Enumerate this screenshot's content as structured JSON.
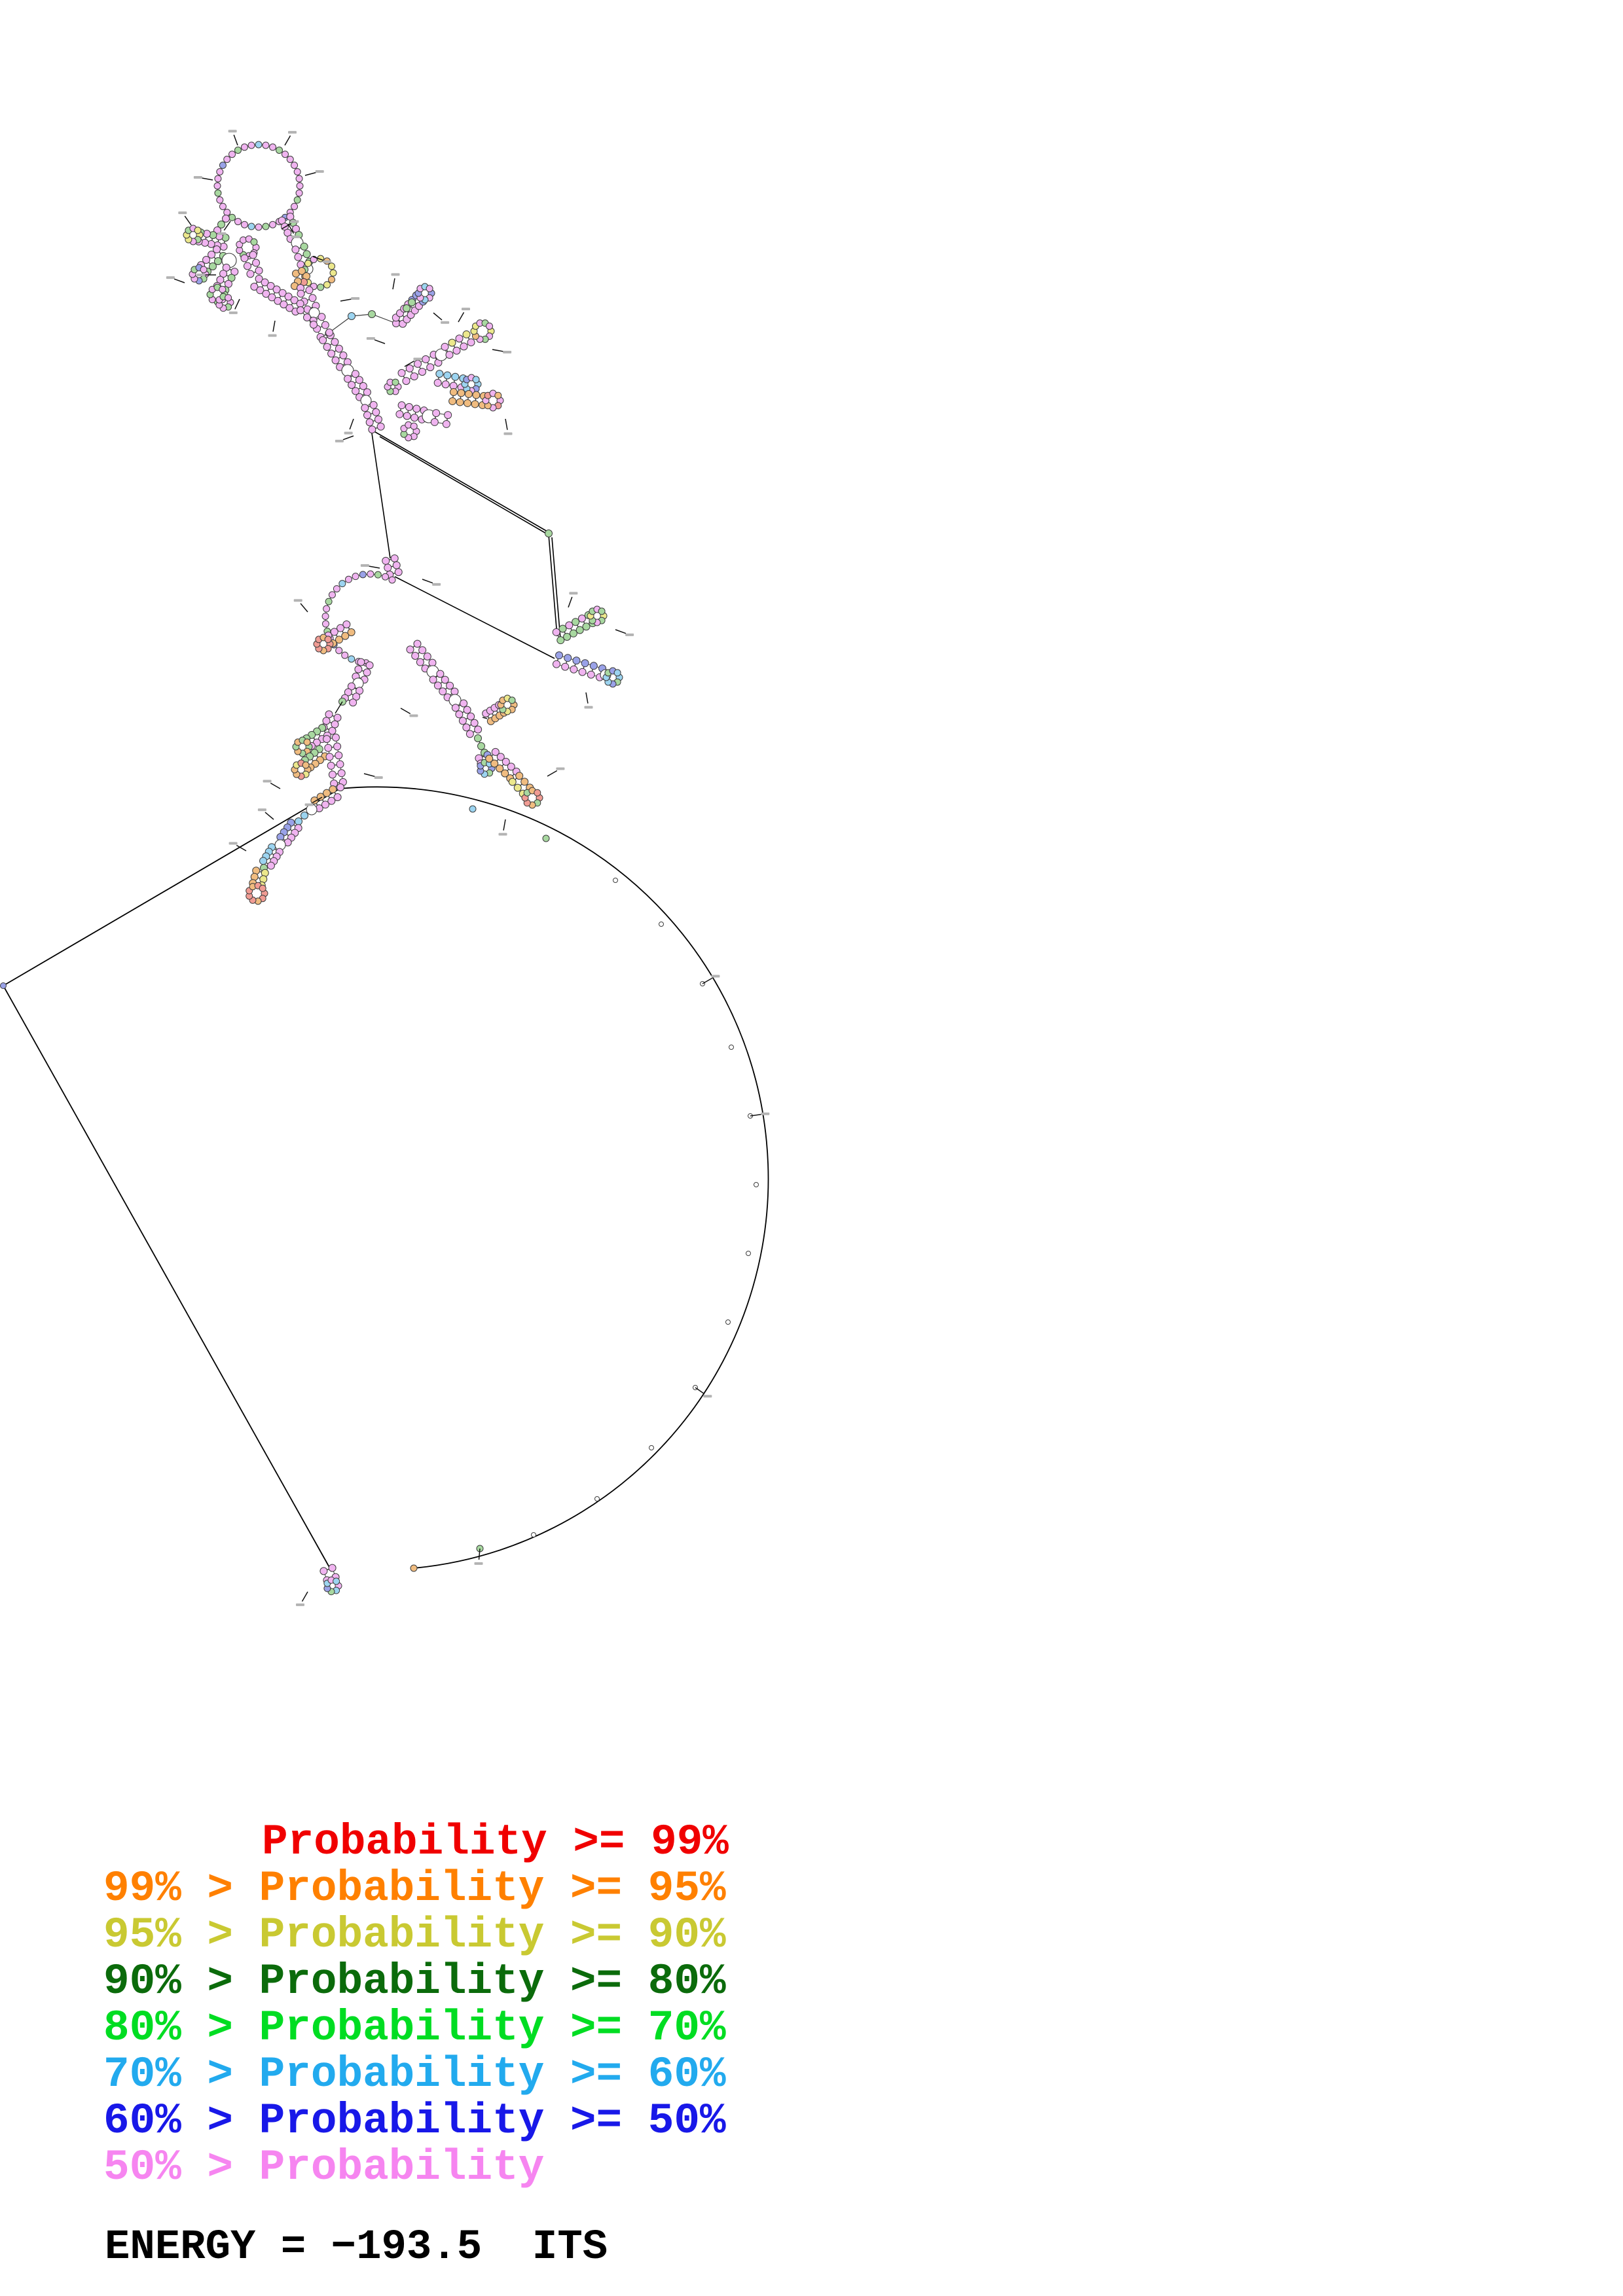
{
  "figure": {
    "type": "rna-secondary-structure-probability-plot",
    "background_color": "#ffffff",
    "backbone_color": "#000000",
    "tick_label_color": "#b3b3b3",
    "legend": {
      "rows": [
        {
          "text": "Probability >= 99%",
          "color": "#f00000",
          "indent": true
        },
        {
          "text": "99% > Probability >= 95%",
          "color": "#ff8000",
          "indent": false
        },
        {
          "text": "95% > Probability >= 90%",
          "color": "#c9c932",
          "indent": false
        },
        {
          "text": "90% > Probability >= 80%",
          "color": "#0b6b0b",
          "indent": false
        },
        {
          "text": "80% > Probability >= 70%",
          "color": "#00dd22",
          "indent": false
        },
        {
          "text": "70% > Probability >= 60%",
          "color": "#22aaee",
          "indent": false
        },
        {
          "text": "60% > Probability >= 50%",
          "color": "#1818e8",
          "indent": false
        },
        {
          "text": "50% > Probability",
          "color": "#f685f0",
          "indent": false
        }
      ]
    },
    "energy_label": "ENERGY = −193.5  ITS",
    "palette": {
      "pink": "#f0b4f0",
      "green": "#a8d8a0",
      "blue": "#9aa2e8",
      "cyan": "#9cd4f0",
      "orange": "#f0bc80",
      "yellow": "#ece88c",
      "red": "#f09c94",
      "white": "#ffffff"
    }
  }
}
